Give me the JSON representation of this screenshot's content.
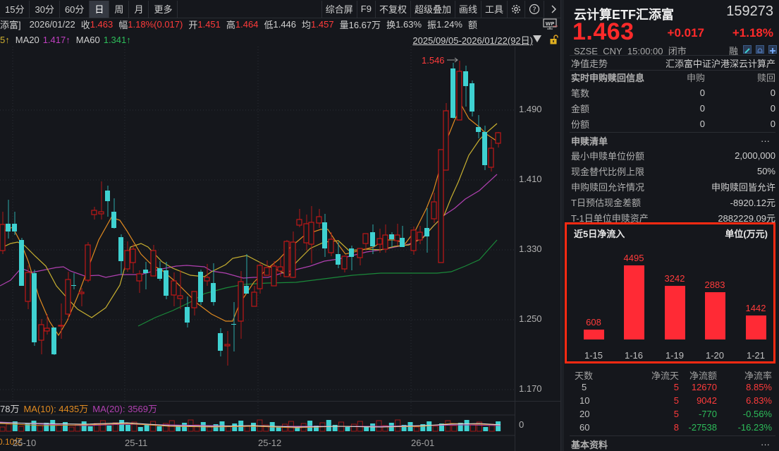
{
  "toolbar": {
    "tabs": [
      "15分",
      "30分",
      "60分",
      "日",
      "周",
      "月",
      "更多"
    ],
    "active_tab": "日",
    "tools": [
      "综合屏",
      "F9",
      "不复权",
      "超级叠加",
      "画线",
      "工具"
    ],
    "icons": [
      "gear-icon",
      "help-icon",
      "chevron-right-icon"
    ]
  },
  "info": {
    "name_fragment": "添富]",
    "date": "2026/01/22",
    "close_label": "收",
    "close": "1.463",
    "amp_label": "幅",
    "amp": "1.18%(0.017)",
    "open_label": "开",
    "open": "1.451",
    "high_label": "高",
    "high": "1.464",
    "low_label": "低",
    "low": "1.446",
    "avg_label": "均",
    "avg": "1.457",
    "vol_label": "量",
    "vol": "16.67万",
    "turn_label": "换",
    "turn": "1.63%",
    "swing_label": "振",
    "swing": "1.24%",
    "amount_label": "额"
  },
  "ma": {
    "ma10_tail": "5↑",
    "ma20_label": "MA20",
    "ma20": "1.417↑",
    "ma60_label": "MA60",
    "ma60": "1.341↑"
  },
  "range": "2025/09/05-2026/01/22(92日)",
  "price_axis": [
    "1.490",
    "1.410",
    "1.330",
    "1.250",
    "1.170"
  ],
  "high_marker": "1.546",
  "volume": {
    "vol_tail": "78万",
    "ma10_label": "MA(10): 4435万",
    "ma20_label": "MA(20): 3569万",
    "axis_zero": "0",
    "amount_tail": "0.10亿"
  },
  "dates": [
    "25-10",
    "25-11",
    "25-12",
    "26-01"
  ],
  "colors": {
    "up": "#ff3b3b",
    "down": "#3fd1d1",
    "ma5": "#e0a030",
    "ma10": "#d0b030",
    "ma20": "#b040b0",
    "ma60": "#1a8a3a"
  },
  "quote": {
    "title": "云计算ETF汇添富",
    "code": "159273",
    "price": "1.463",
    "change": "+0.017",
    "change_pct": "+1.18%",
    "exchange": "SZSE",
    "currency": "CNY",
    "time": "15:00:00",
    "status": "闭市",
    "margin": "融"
  },
  "nav": {
    "label": "净值走势",
    "value": "汇添富中证沪港深云计算产"
  },
  "realtime": {
    "title": "实时申购赎回信息",
    "col_sub": "申购",
    "col_red": "赎回",
    "rows": [
      {
        "k": "笔数",
        "sub": "0",
        "red": "0"
      },
      {
        "k": "金额",
        "sub": "0",
        "red": "0"
      },
      {
        "k": "份额",
        "sub": "0",
        "red": "0"
      }
    ]
  },
  "list": {
    "title": "申赎清单",
    "more": "···",
    "rows": [
      {
        "k": "最小申赎单位份额",
        "v": "2,000,000"
      },
      {
        "k": "现金替代比例上限",
        "v": "50%"
      },
      {
        "k": "申购赎回允许情况",
        "v": "申购赎回皆允许"
      },
      {
        "k": "T日预估现金差额",
        "v": "-8920.12元"
      },
      {
        "k": "T-1日单位申赎资产",
        "v": "2882229.09元"
      }
    ]
  },
  "flow": {
    "title": "近5日净流入",
    "unit": "单位(万元)"
  },
  "chart_data": {
    "type": "bar",
    "title": "近5日净流入",
    "ylabel": "单位(万元)",
    "categories": [
      "1-15",
      "1-16",
      "1-19",
      "1-20",
      "1-21"
    ],
    "values": [
      608,
      4495,
      3242,
      2883,
      1442
    ]
  },
  "flow_table": {
    "headers": [
      "天数",
      "净流天",
      "净流额",
      "净流率"
    ],
    "rows": [
      {
        "days": "5",
        "flow_days": "5",
        "amount": "12670",
        "rate": "8.85%",
        "sign": "pos"
      },
      {
        "days": "10",
        "flow_days": "5",
        "amount": "9042",
        "rate": "6.83%",
        "sign": "pos"
      },
      {
        "days": "20",
        "flow_days": "5",
        "amount": "-770",
        "rate": "-0.56%",
        "sign": "neg"
      },
      {
        "days": "60",
        "flow_days": "8",
        "amount": "-27538",
        "rate": "-16.23%",
        "sign": "neg"
      }
    ]
  },
  "basic": {
    "title": "基本资料",
    "more": "···"
  }
}
